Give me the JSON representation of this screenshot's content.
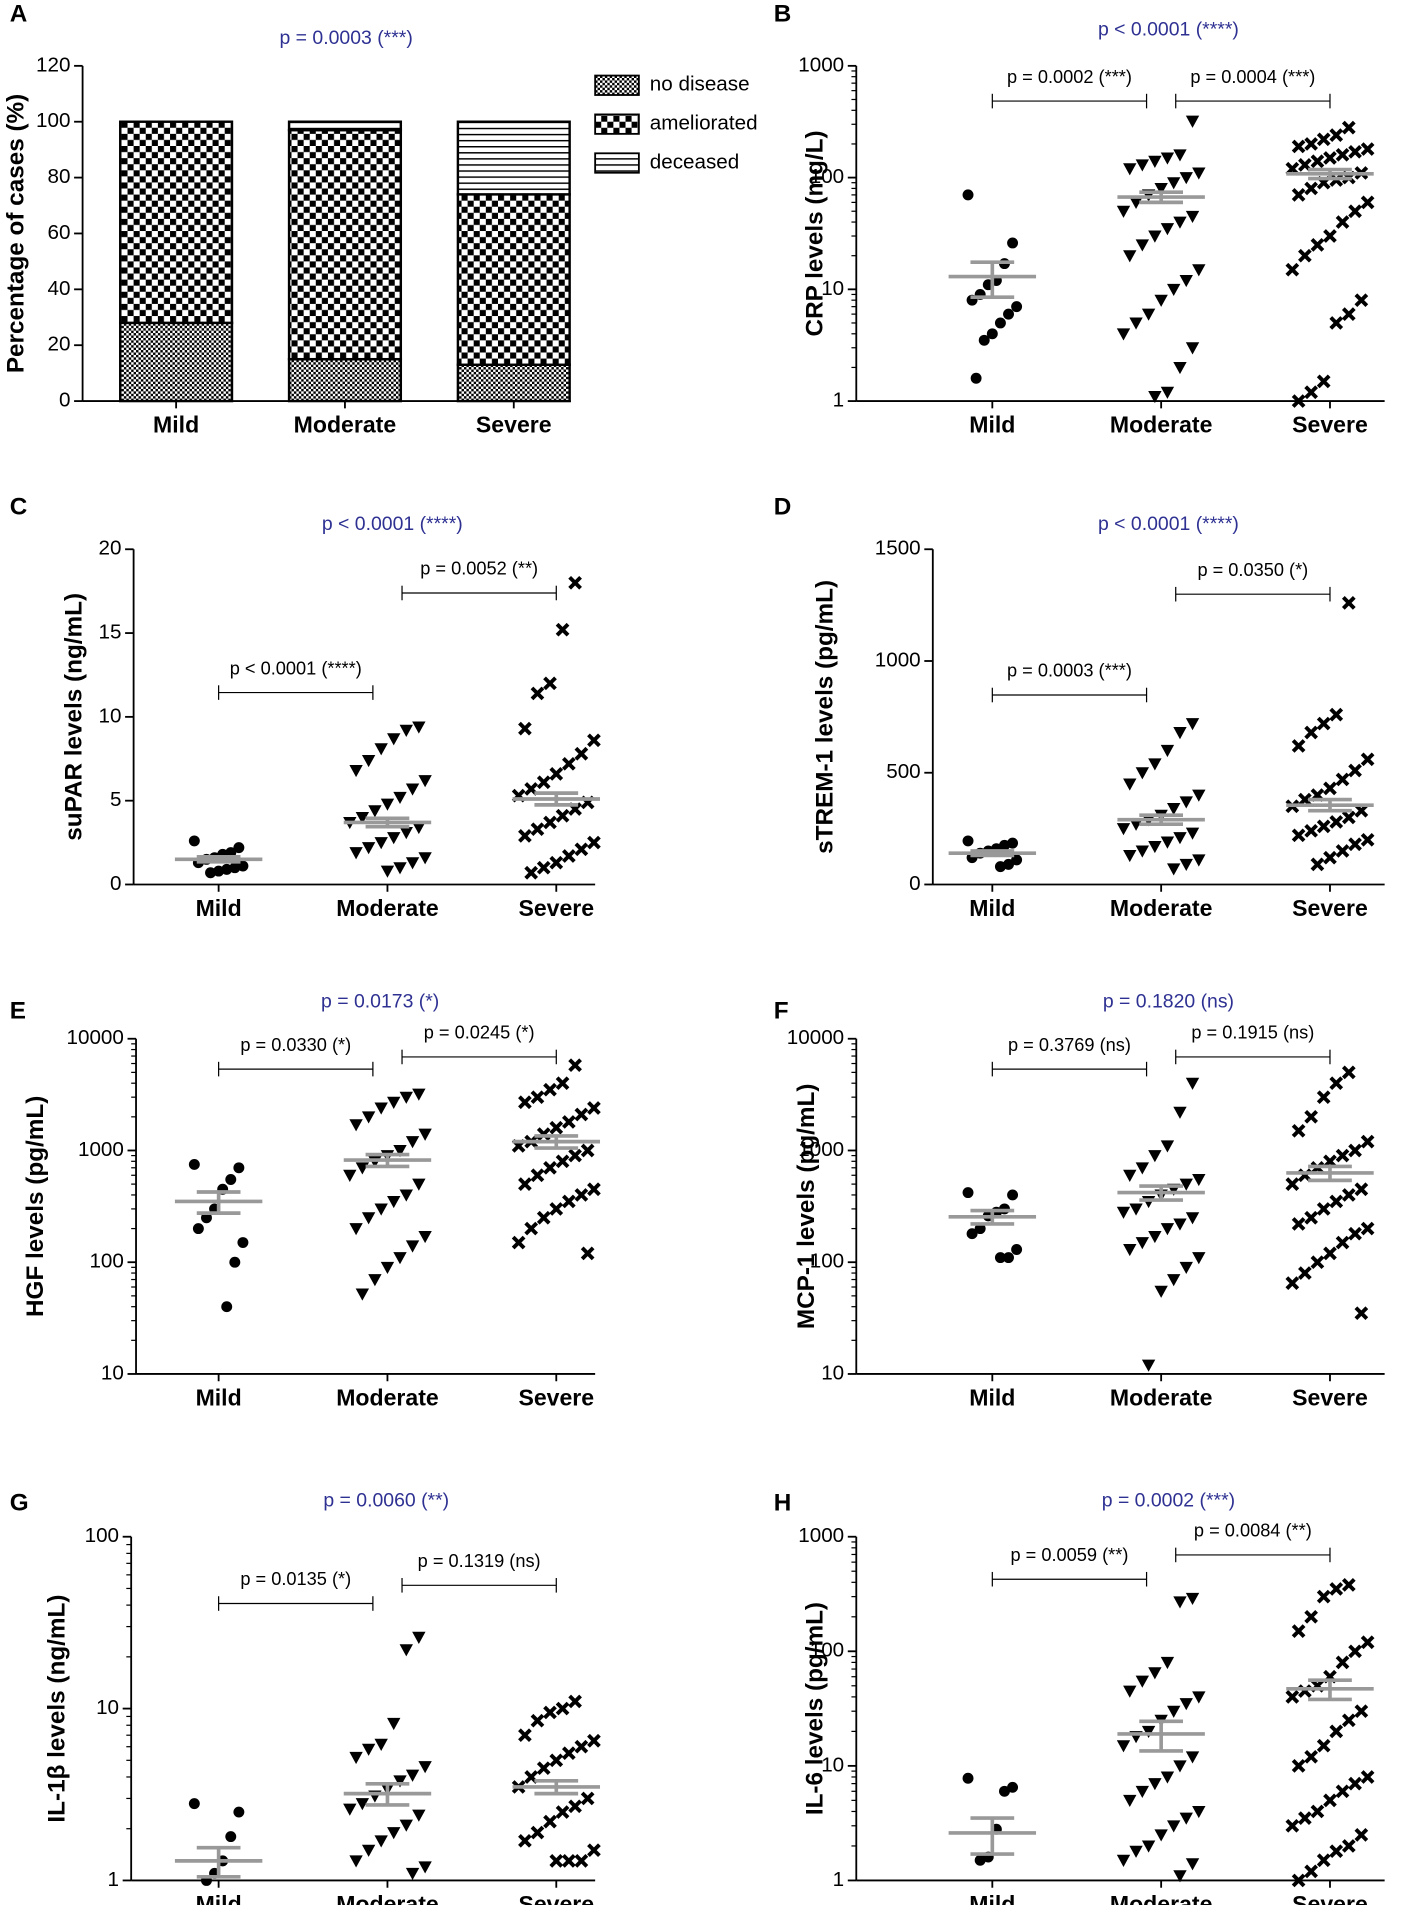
{
  "chart_data": [
    {
      "type": "stacked_bar",
      "panel": "A",
      "title": "p = 0.0003 (***)",
      "ylabel": "Percentage of cases (%)",
      "categories": [
        "Mild",
        "Moderate",
        "Severe"
      ],
      "series": [
        {
          "name": "no disease",
          "values": [
            28,
            15,
            13
          ]
        },
        {
          "name": "ameliorated",
          "values": [
            72,
            82,
            61
          ]
        },
        {
          "name": "deceased",
          "values": [
            0,
            3,
            26
          ]
        }
      ],
      "ylim": [
        0,
        120
      ],
      "yticks": [
        0,
        20,
        40,
        60,
        80,
        100,
        120
      ]
    },
    {
      "type": "dot",
      "panel": "B",
      "title": "p < 0.0001 (****)",
      "ylabel": "CRP levels (mg/L)",
      "categories": [
        "Mild",
        "Moderate",
        "Severe"
      ],
      "log": true,
      "ylim": [
        1,
        1000
      ],
      "yticks": [
        1,
        10,
        100,
        1000
      ],
      "comparisons": [
        "p = 0.0002 (***)",
        "p = 0.0004 (***)"
      ],
      "mean": [
        13,
        67,
        108
      ],
      "sem": [
        4.5,
        7,
        10
      ],
      "points": [
        [
          70,
          26,
          17,
          12,
          11,
          9,
          8,
          7,
          6,
          5,
          4,
          3.5,
          1.6
        ],
        [
          320,
          160,
          150,
          140,
          130,
          120,
          110,
          100,
          90,
          80,
          70,
          60,
          50,
          45,
          40,
          35,
          30,
          25,
          20,
          15,
          12,
          10,
          8,
          6,
          5,
          4,
          3,
          2,
          1.2,
          1.1
        ],
        [
          280,
          240,
          220,
          200,
          190,
          180,
          170,
          160,
          150,
          140,
          130,
          120,
          110,
          100,
          95,
          90,
          80,
          70,
          60,
          50,
          40,
          30,
          25,
          20,
          15,
          8,
          6,
          5,
          1.5,
          1.2,
          1.0
        ]
      ]
    },
    {
      "type": "dot",
      "panel": "C",
      "title": "p < 0.0001 (****)",
      "ylabel": "suPAR levels (ng/mL)",
      "categories": [
        "Mild",
        "Moderate",
        "Severe"
      ],
      "log": false,
      "ylim": [
        0,
        20
      ],
      "yticks": [
        0,
        5,
        10,
        15,
        20
      ],
      "comparisons": [
        "p < 0.0001 (****)",
        "p = 0.0052 (**)"
      ],
      "mean": [
        1.5,
        3.7,
        5.1
      ],
      "sem": [
        0.15,
        0.25,
        0.35
      ],
      "points": [
        [
          2.6,
          2.2,
          1.9,
          1.8,
          1.6,
          1.5,
          1.3,
          1.1,
          1.0,
          0.9,
          0.8,
          0.7
        ],
        [
          9.4,
          9.2,
          8.7,
          8.1,
          7.4,
          6.8,
          6.2,
          5.7,
          5.2,
          4.8,
          4.4,
          4.0,
          3.7,
          3.4,
          3.1,
          2.8,
          2.5,
          2.2,
          1.9,
          1.6,
          1.3,
          1.0,
          0.8
        ],
        [
          18,
          15.2,
          12,
          11.4,
          9.3,
          8.6,
          7.8,
          7.2,
          6.6,
          6.1,
          5.7,
          5.3,
          4.9,
          4.5,
          4.1,
          3.7,
          3.3,
          2.9,
          2.5,
          2.1,
          1.7,
          1.3,
          1.0,
          0.7
        ]
      ]
    },
    {
      "type": "dot",
      "panel": "D",
      "title": "p < 0.0001 (****)",
      "ylabel": "sTREM-1 levels (pg/mL)",
      "categories": [
        "Mild",
        "Moderate",
        "Severe"
      ],
      "log": false,
      "ylim": [
        0,
        1500
      ],
      "yticks": [
        0,
        500,
        1000,
        1500
      ],
      "comparisons": [
        "p = 0.0003 (***)",
        "p = 0.0350 (*)"
      ],
      "mean": [
        140,
        290,
        355
      ],
      "sem": [
        10,
        20,
        25
      ],
      "points": [
        [
          195,
          185,
          175,
          160,
          150,
          140,
          120,
          110,
          90,
          80
        ],
        [
          720,
          680,
          600,
          540,
          500,
          450,
          400,
          370,
          340,
          310,
          290,
          270,
          250,
          230,
          210,
          190,
          170,
          150,
          130,
          110,
          90,
          70
        ],
        [
          1260,
          760,
          720,
          680,
          620,
          560,
          510,
          470,
          430,
          400,
          380,
          350,
          330,
          300,
          280,
          260,
          240,
          220,
          200,
          180,
          150,
          120,
          90
        ]
      ]
    },
    {
      "type": "dot",
      "panel": "E",
      "title": "p = 0.0173 (*)",
      "ylabel": "HGF levels (pg/mL)",
      "categories": [
        "Mild",
        "Moderate",
        "Severe"
      ],
      "log": true,
      "ylim": [
        10,
        10000
      ],
      "yticks": [
        10,
        100,
        1000,
        10000
      ],
      "comparisons": [
        "p = 0.0330 (*)",
        "p = 0.0245 (*)"
      ],
      "mean": [
        350,
        820,
        1200
      ],
      "sem": [
        75,
        100,
        150
      ],
      "points": [
        [
          750,
          700,
          550,
          450,
          300,
          250,
          200,
          150,
          100,
          40
        ],
        [
          3200,
          3000,
          2700,
          2400,
          2000,
          1700,
          1400,
          1200,
          1000,
          900,
          800,
          700,
          600,
          500,
          400,
          350,
          300,
          250,
          200,
          170,
          140,
          110,
          90,
          70,
          52
        ],
        [
          5800,
          4000,
          3500,
          3000,
          2700,
          2400,
          2100,
          1800,
          1600,
          1400,
          1200,
          1100,
          1000,
          900,
          800,
          700,
          600,
          500,
          450,
          400,
          350,
          300,
          250,
          200,
          150,
          120
        ]
      ]
    },
    {
      "type": "dot",
      "panel": "F",
      "title": "p = 0.1820 (ns)",
      "ylabel": "MCP-1 levels (pg/mL)",
      "categories": [
        "Mild",
        "Moderate",
        "Severe"
      ],
      "log": true,
      "ylim": [
        10,
        10000
      ],
      "yticks": [
        10,
        100,
        1000,
        10000
      ],
      "comparisons": [
        "p = 0.3769 (ns)",
        "p = 0.1915 (ns)"
      ],
      "mean": [
        255,
        420,
        630
      ],
      "sem": [
        35,
        60,
        90
      ],
      "points": [
        [
          420,
          400,
          300,
          280,
          260,
          200,
          180,
          130,
          110,
          110
        ],
        [
          4000,
          2200,
          1100,
          900,
          700,
          600,
          550,
          500,
          450,
          400,
          350,
          300,
          280,
          250,
          220,
          200,
          170,
          150,
          130,
          110,
          90,
          70,
          55,
          12
        ],
        [
          5000,
          4000,
          3000,
          2000,
          1500,
          1200,
          1000,
          900,
          800,
          700,
          600,
          500,
          450,
          400,
          350,
          300,
          250,
          220,
          200,
          180,
          150,
          120,
          100,
          80,
          65,
          35
        ]
      ]
    },
    {
      "type": "dot",
      "panel": "G",
      "title": "p = 0.0060 (**)",
      "ylabel": "IL-1β levels (ng/mL)",
      "categories": [
        "Mild",
        "Moderate",
        "Severe"
      ],
      "log": true,
      "ylim": [
        1,
        100
      ],
      "yticks": [
        1,
        10,
        100
      ],
      "comparisons": [
        "p = 0.0135 (*)",
        "p = 0.1319 (ns)"
      ],
      "mean": [
        1.3,
        3.2,
        3.5
      ],
      "sem": [
        0.25,
        0.45,
        0.3
      ],
      "points": [
        [
          2.8,
          2.5,
          1.8,
          1.3,
          1.1,
          1.0
        ],
        [
          26,
          22,
          8.2,
          6.2,
          5.8,
          5.2,
          4.6,
          4.1,
          3.8,
          3.4,
          3.1,
          2.8,
          2.6,
          2.4,
          2.1,
          1.9,
          1.7,
          1.5,
          1.3,
          1.2,
          1.1
        ],
        [
          11,
          10,
          9.5,
          8.5,
          7,
          6.5,
          6,
          5.5,
          5,
          4.5,
          4,
          3.5,
          3,
          2.7,
          2.5,
          2.2,
          1.9,
          1.7,
          1.5,
          1.3,
          1.3,
          1.3
        ]
      ]
    },
    {
      "type": "dot",
      "panel": "H",
      "title": "p = 0.0002 (***)",
      "ylabel": "IL-6 levels (pg/mL)",
      "categories": [
        "Mild",
        "Moderate",
        "Severe"
      ],
      "log": true,
      "ylim": [
        1,
        1000
      ],
      "yticks": [
        1,
        10,
        100,
        1000
      ],
      "comparisons": [
        "p = 0.0059 (**)",
        "p = 0.0084 (**)"
      ],
      "mean": [
        2.6,
        19,
        47
      ],
      "sem": [
        0.9,
        5.5,
        9
      ],
      "points": [
        [
          7.8,
          6.5,
          6,
          2.8,
          1.6,
          1.5
        ],
        [
          290,
          270,
          80,
          65,
          55,
          45,
          40,
          35,
          30,
          25,
          20,
          18,
          15,
          12,
          10,
          8,
          7,
          6,
          5,
          4,
          3.5,
          3,
          2.5,
          2,
          1.8,
          1.5,
          1.4,
          1.1
        ],
        [
          380,
          350,
          300,
          200,
          150,
          120,
          100,
          80,
          60,
          50,
          45,
          40,
          30,
          25,
          20,
          15,
          12,
          10,
          8,
          7,
          6,
          5,
          4,
          3.5,
          3,
          2.5,
          2,
          1.8,
          1.5,
          1.2,
          1.0
        ]
      ]
    }
  ]
}
